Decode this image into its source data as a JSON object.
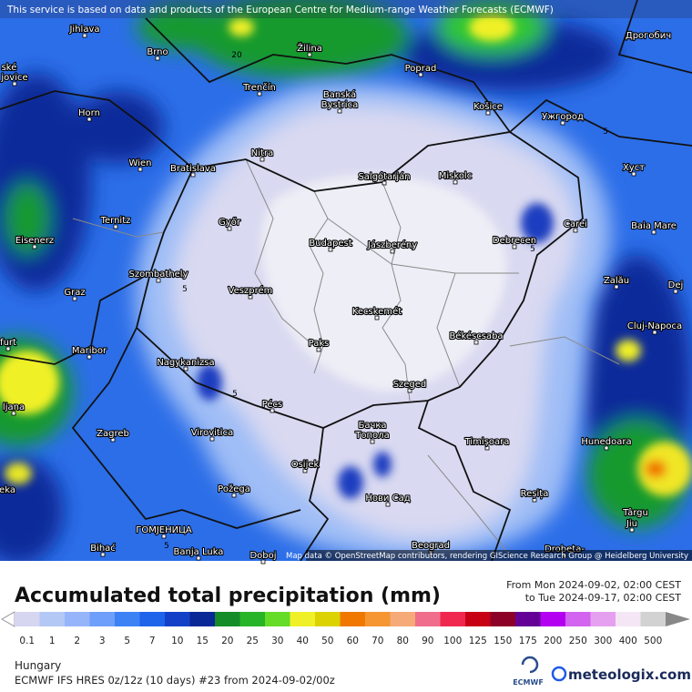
{
  "header": {
    "notice": "This service is based on data and products of the European Centre for Medium-range Weather Forecasts (ECMWF)"
  },
  "map": {
    "cities": [
      "Jihlava",
      "Brno",
      "Žilina",
      "Poprad",
      "Дрогобич",
      "ské",
      "jovice",
      "Trenčín",
      "Banská",
      "Bystrica",
      "Horn",
      "Košice",
      "Ужгород",
      "Nitra",
      "Wien",
      "Bratislava",
      "Salgótarján",
      "Miskolc",
      "Хуст",
      "Ternitz",
      "Győr",
      "Carei",
      "Baia Mare",
      "Eisenerz",
      "Budapest",
      "Jászberény",
      "Debrecen",
      "Szombathely",
      "Zalău",
      "Graz",
      "Veszprém",
      "Dej",
      "Kecskemét",
      "Cluj-Napoca",
      "furt",
      "Maribor",
      "Paks",
      "Békéscsaba",
      "Nagykanizsa",
      "Szeged",
      "ljana",
      "Pécs",
      "Бачка",
      "Топола",
      "Zagreb",
      "Virovitica",
      "Timișoara",
      "Hunedoara",
      "Osijek",
      "Požega",
      "Нови Сад",
      "eka",
      "Reșița",
      "Târgu",
      "Jiu",
      "ГОМЈЕНИЦА",
      "Beograd",
      "Bihać",
      "Banja Luka",
      "Doboj",
      "Drobeta-"
    ],
    "contour_labels": [
      "20",
      "5",
      "5",
      "5",
      "5",
      "5"
    ],
    "attribution": "Map data © OpenStreetMap contributors, rendering GIScience Research Group @ Heidelberg University"
  },
  "legend": {
    "title": "Accumulated total precipitation (mm)",
    "from": "From Mon 2024-09-02, 02:00 CEST",
    "to": "to Tue 2024-09-17, 02:00 CEST",
    "scale": [
      {
        "label": "0.1",
        "color": "#d6d6f0"
      },
      {
        "label": "1",
        "color": "#b4c8f5"
      },
      {
        "label": "2",
        "color": "#96b4fa"
      },
      {
        "label": "3",
        "color": "#6e9ffa"
      },
      {
        "label": "5",
        "color": "#3c82f5"
      },
      {
        "label": "7",
        "color": "#1e64eb"
      },
      {
        "label": "10",
        "color": "#1440c8"
      },
      {
        "label": "15",
        "color": "#0a2896"
      },
      {
        "label": "20",
        "color": "#148c28"
      },
      {
        "label": "25",
        "color": "#28b428"
      },
      {
        "label": "30",
        "color": "#64dc28"
      },
      {
        "label": "40",
        "color": "#f0f028"
      },
      {
        "label": "50",
        "color": "#dcd200"
      },
      {
        "label": "60",
        "color": "#f07800"
      },
      {
        "label": "70",
        "color": "#f59632"
      },
      {
        "label": "80",
        "color": "#f5aa78"
      },
      {
        "label": "90",
        "color": "#f06e8c"
      },
      {
        "label": "100",
        "color": "#f02850"
      },
      {
        "label": "125",
        "color": "#c80014"
      },
      {
        "label": "150",
        "color": "#8c0028"
      },
      {
        "label": "175",
        "color": "#640096"
      },
      {
        "label": "200",
        "color": "#b400f0"
      },
      {
        "label": "250",
        "color": "#d264f0"
      },
      {
        "label": "300",
        "color": "#e6a0f0"
      },
      {
        "label": "400",
        "color": "#f5e6f5"
      },
      {
        "label": "500",
        "color": "#d2d2d2"
      }
    ]
  },
  "footer": {
    "region": "Hungary",
    "model": "ECMWF IFS HRES 0z/12z (10 days) #23 from  2024-09-02/00z",
    "ecmwf": "ECMWF",
    "brand": "meteologix.com"
  }
}
